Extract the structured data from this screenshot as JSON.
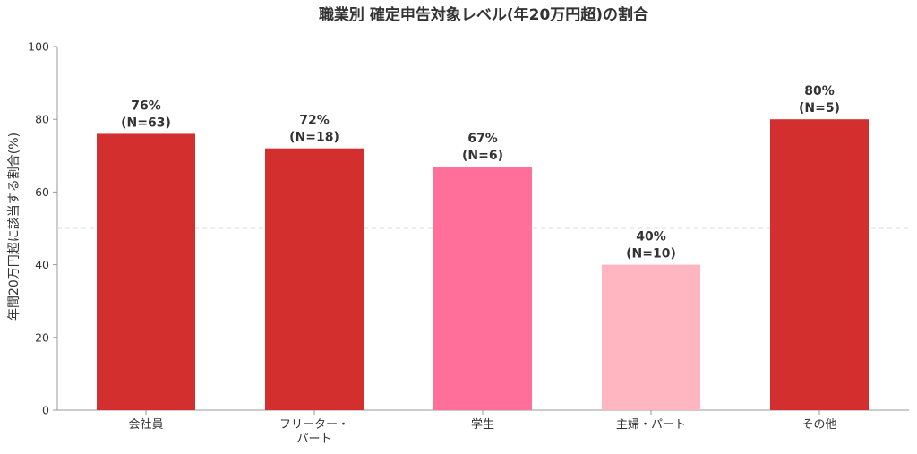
{
  "chart_data": {
    "type": "bar",
    "title": "職業別 確定申告対象レベル(年20万円超)の割合",
    "xlabel": "",
    "ylabel": "年間20万円超に該当する割合(%)",
    "ylim": [
      0,
      100
    ],
    "yticks": [
      0,
      20,
      40,
      60,
      80,
      100
    ],
    "categories": [
      [
        "会社員"
      ],
      [
        "フリーター・",
        "パート"
      ],
      [
        "学生"
      ],
      [
        "主婦・パート"
      ],
      [
        "その他"
      ]
    ],
    "values": [
      76,
      72,
      67,
      40,
      80
    ],
    "labels": [
      "76%",
      "72%",
      "67%",
      "40%",
      "80%"
    ],
    "counts": [
      "(N=63)",
      "(N=18)",
      "(N=6)",
      "(N=10)",
      "(N=5)"
    ],
    "colors": [
      "#d32f2f",
      "#d32f2f",
      "#ff6f9a",
      "#ffb6c1",
      "#d32f2f"
    ],
    "reference_line": 50,
    "reference_line_color": "#dddddd",
    "grid": false,
    "legend": "none"
  }
}
